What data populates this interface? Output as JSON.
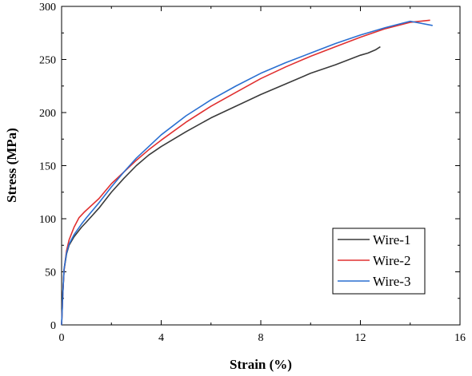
{
  "chart_data": {
    "type": "line",
    "title": "",
    "xlabel": "Strain (%)",
    "ylabel": "Stress (MPa)",
    "xlim": [
      0,
      16
    ],
    "ylim": [
      0,
      300
    ],
    "xticks": [
      0,
      4,
      8,
      12,
      16
    ],
    "yticks": [
      0,
      50,
      100,
      150,
      200,
      250,
      300
    ],
    "grid": false,
    "legend": {
      "position": "bottom-right",
      "entries": [
        "Wire-1",
        "Wire-2",
        "Wire-3"
      ]
    },
    "series": [
      {
        "name": "Wire-1",
        "color": "#3a3a3a",
        "x": [
          0,
          0.05,
          0.1,
          0.2,
          0.3,
          0.5,
          0.8,
          1,
          1.5,
          2,
          2.5,
          3,
          3.5,
          4,
          5,
          6,
          7,
          8,
          9,
          10,
          11,
          12,
          12.3,
          12.6,
          12.8
        ],
        "y": [
          0,
          30,
          52,
          67,
          75,
          83,
          92,
          97,
          110,
          125,
          138,
          150,
          160,
          168,
          182,
          195,
          206,
          217,
          227,
          237,
          245,
          254,
          256,
          259,
          262
        ]
      },
      {
        "name": "Wire-2",
        "color": "#e03030",
        "x": [
          0,
          0.05,
          0.1,
          0.2,
          0.3,
          0.5,
          0.7,
          0.9,
          1.5,
          2,
          2.5,
          3,
          3.5,
          4,
          5,
          6,
          7,
          8,
          9,
          10,
          11,
          12,
          13,
          14,
          14.8
        ],
        "y": [
          0,
          30,
          52,
          70,
          80,
          92,
          101,
          106,
          119,
          133,
          144,
          155,
          165,
          174,
          191,
          206,
          219,
          232,
          243,
          253,
          262,
          271,
          279,
          285,
          287
        ]
      },
      {
        "name": "Wire-3",
        "color": "#2a6fd1",
        "x": [
          0,
          0.05,
          0.1,
          0.2,
          0.3,
          0.5,
          0.8,
          1,
          1.5,
          2,
          2.5,
          3,
          3.5,
          4,
          5,
          6,
          7,
          8,
          9,
          10,
          11,
          12,
          13,
          14,
          14.9
        ],
        "y": [
          0,
          30,
          53,
          68,
          76,
          85,
          95,
          101,
          115,
          130,
          144,
          157,
          168,
          179,
          197,
          212,
          225,
          237,
          247,
          256,
          265,
          273,
          280,
          286,
          282
        ]
      }
    ]
  }
}
